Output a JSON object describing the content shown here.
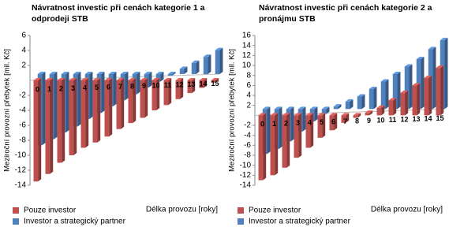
{
  "chart_data": [
    {
      "type": "bar",
      "title": "Návratnost investic při cenách kategorie 1 a odprodeji STB",
      "y_label": "Meziroční provozní přebytek [mil. Kč]",
      "x_label": "Délka provozu [roky]",
      "categories": [
        "0",
        "1",
        "2",
        "3",
        "4",
        "5",
        "6",
        "7",
        "8",
        "9",
        "10",
        "11",
        "12",
        "13",
        "14",
        "15"
      ],
      "series": [
        {
          "name": "Pouze investor",
          "color": "#c0504d",
          "values": [
            -13.5,
            -12.5,
            -11,
            -10,
            -9,
            -8.3,
            -7.5,
            -6.5,
            -5.7,
            -5,
            -4,
            -3.3,
            -2.5,
            -1.7,
            -1,
            -0.3
          ]
        },
        {
          "name": "Investor a strategický partner",
          "color": "#4f81bd",
          "values": [
            -9.5,
            -8.7,
            -7.8,
            -7,
            -6,
            -5.2,
            -4.3,
            -3.5,
            -2.7,
            -1.8,
            -1,
            -0.2,
            0.7,
            1.5,
            2.3,
            3.2
          ]
        }
      ],
      "ylim": [
        -14,
        6
      ],
      "yticks": [
        6,
        4,
        2,
        -2,
        -4,
        -6,
        -8,
        -10,
        -12,
        -14
      ],
      "grid": false
    },
    {
      "type": "bar",
      "title": "Návratnost investic při cenách kategorie 2 a pronájmu STB",
      "y_label": "Meziroční provozní přebytek [mil. Kč]",
      "x_label": "Délka provozu [roky]",
      "categories": [
        "0",
        "1",
        "2",
        "3",
        "4",
        "5",
        "6",
        "7",
        "8",
        "9",
        "10",
        "11",
        "12",
        "13",
        "14",
        "15"
      ],
      "series": [
        {
          "name": "Pouze investor",
          "color": "#c0504d",
          "values": [
            -13,
            -12,
            -10.5,
            -8.5,
            -6.5,
            -4.5,
            -3,
            -1.5,
            -0.5,
            0.5,
            1.5,
            3,
            4.5,
            6,
            7.5,
            9.5
          ]
        },
        {
          "name": "Investor a strategický partner",
          "color": "#4f81bd",
          "values": [
            -9,
            -8,
            -6.5,
            -4.5,
            -2.5,
            -1,
            0.5,
            1.5,
            2.5,
            4,
            5.5,
            7,
            8.5,
            10,
            12,
            13.8
          ]
        }
      ],
      "ylim": [
        -14,
        16
      ],
      "yticks": [
        16,
        14,
        12,
        10,
        8,
        6,
        4,
        2,
        -2,
        -4,
        -6,
        -8,
        -10,
        -12,
        -14
      ],
      "grid": false
    }
  ]
}
